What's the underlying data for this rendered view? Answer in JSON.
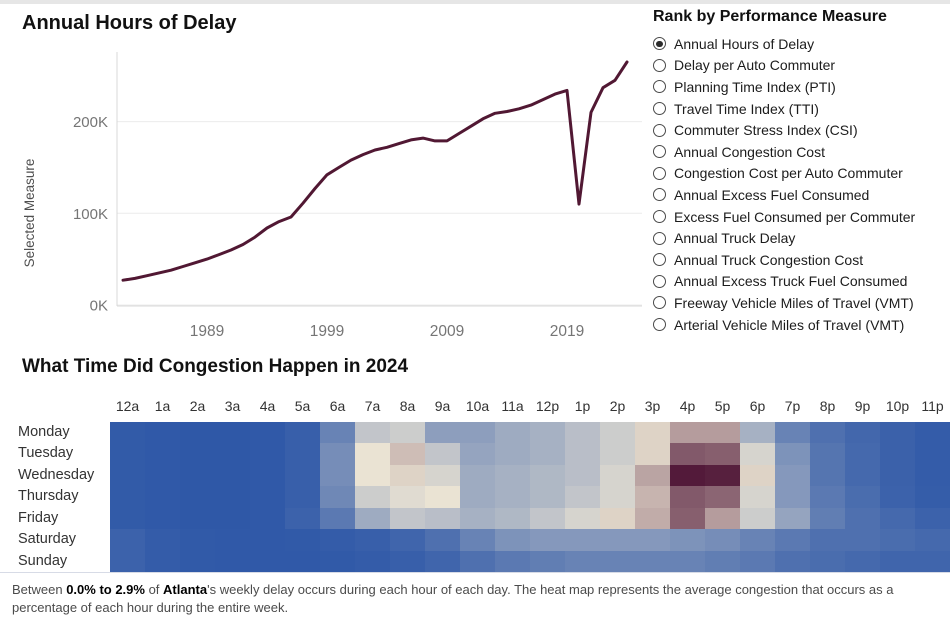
{
  "line_section": {
    "title": "Annual Hours of Delay",
    "y_axis_label": "Selected Measure"
  },
  "radio_panel": {
    "title": "Rank by Performance Measure",
    "selected_index": 0,
    "options": [
      "Annual Hours of Delay",
      "Delay per Auto Commuter",
      "Planning Time Index (PTI)",
      "Travel Time Index (TTI)",
      "Commuter Stress Index (CSI)",
      "Annual Congestion Cost",
      "Congestion Cost per Auto Commuter",
      "Annual Excess Fuel Consumed",
      "Excess Fuel Consumed per Commuter",
      "Annual Truck Delay",
      "Annual Truck Congestion Cost",
      "Annual Excess Truck Fuel Consumed",
      "Freeway Vehicle Miles of Travel (VMT)",
      "Arterial Vehicle Miles of Travel (VMT)"
    ]
  },
  "heat_section": {
    "title": "What Time Did Congestion Happen in 2024"
  },
  "footer": {
    "segments": [
      {
        "text": "Between ",
        "bold": false
      },
      {
        "text": "0.0% to 2.9%",
        "bold": true
      },
      {
        "text": " of ",
        "bold": false
      },
      {
        "text": "Atlanta",
        "bold": true
      },
      {
        "text": "'s weekly delay occurs during each hour of each day. The heat map represents the average congestion that occurs as a percentage of each hour during the entire week.",
        "bold": false
      }
    ]
  },
  "colors": {
    "line": "#511833",
    "gridline": "#ececec",
    "axis_line": "#d8d8d8",
    "tick_text": "#757575",
    "heat_low": "#2d57a7",
    "heat_mid": "#eae3d3",
    "heat_high": "#4f1536"
  },
  "chart_data": [
    {
      "type": "line",
      "title": "Annual Hours of Delay",
      "xlabel": "",
      "ylabel": "Selected Measure",
      "x": [
        1982,
        1983,
        1984,
        1985,
        1986,
        1987,
        1988,
        1989,
        1990,
        1991,
        1992,
        1993,
        1994,
        1995,
        1996,
        1997,
        1998,
        1999,
        2000,
        2001,
        2002,
        2003,
        2004,
        2005,
        2006,
        2007,
        2008,
        2009,
        2010,
        2011,
        2012,
        2013,
        2014,
        2015,
        2016,
        2017,
        2018,
        2019,
        2020,
        2021,
        2022,
        2023,
        2024
      ],
      "y": [
        27000,
        29000,
        32000,
        35000,
        38000,
        42000,
        46000,
        50000,
        55000,
        60000,
        66000,
        74000,
        84000,
        91000,
        96000,
        111000,
        127000,
        142000,
        150000,
        158000,
        164000,
        169000,
        172000,
        176000,
        180000,
        182000,
        179000,
        179000,
        187000,
        195000,
        203000,
        209000,
        211000,
        214000,
        218000,
        224000,
        230000,
        234000,
        110000,
        210000,
        237000,
        245000,
        265000
      ],
      "ylim": [
        0,
        280000
      ],
      "y_ticks": [
        {
          "v": 0,
          "label": "0K"
        },
        {
          "v": 100000,
          "label": "100K"
        },
        {
          "v": 200000,
          "label": "200K"
        }
      ],
      "x_ticks": [
        {
          "v": 1989,
          "label": "1989"
        },
        {
          "v": 1999,
          "label": "1999"
        },
        {
          "v": 2009,
          "label": "2009"
        },
        {
          "v": 2019,
          "label": "2019"
        }
      ],
      "grid": true,
      "legend": "none"
    },
    {
      "type": "heatmap",
      "title": "What Time Did Congestion Happen in 2024",
      "unit": "percent of weekly delay per hour",
      "value_range": [
        0.0,
        2.9
      ],
      "hours": [
        "12a",
        "1a",
        "2a",
        "3a",
        "4a",
        "5a",
        "6a",
        "7a",
        "8a",
        "9a",
        "10a",
        "11a",
        "12p",
        "1p",
        "2p",
        "3p",
        "4p",
        "5p",
        "6p",
        "7p",
        "8p",
        "9p",
        "10p",
        "11p"
      ],
      "days": [
        "Monday",
        "Tuesday",
        "Wednesday",
        "Thursday",
        "Friday",
        "Saturday",
        "Sunday"
      ],
      "values": [
        [
          0.15,
          0.1,
          0.08,
          0.08,
          0.1,
          0.25,
          0.7,
          1.25,
          1.3,
          0.95,
          0.95,
          1.05,
          1.1,
          1.2,
          1.3,
          1.5,
          1.8,
          1.8,
          1.1,
          0.7,
          0.5,
          0.38,
          0.28,
          0.18
        ],
        [
          0.15,
          0.1,
          0.08,
          0.08,
          0.1,
          0.25,
          0.8,
          1.45,
          1.6,
          1.25,
          1.0,
          1.05,
          1.1,
          1.2,
          1.3,
          1.5,
          2.3,
          2.25,
          1.35,
          0.85,
          0.55,
          0.4,
          0.28,
          0.18
        ],
        [
          0.15,
          0.1,
          0.08,
          0.08,
          0.1,
          0.25,
          0.8,
          1.45,
          1.5,
          1.35,
          1.05,
          1.1,
          1.15,
          1.2,
          1.35,
          1.75,
          2.85,
          2.8,
          1.5,
          0.9,
          0.55,
          0.4,
          0.28,
          0.18
        ],
        [
          0.15,
          0.1,
          0.08,
          0.08,
          0.1,
          0.25,
          0.75,
          1.3,
          1.4,
          1.45,
          1.05,
          1.1,
          1.15,
          1.25,
          1.35,
          1.65,
          2.3,
          2.2,
          1.35,
          0.9,
          0.6,
          0.45,
          0.3,
          0.2
        ],
        [
          0.15,
          0.1,
          0.08,
          0.08,
          0.1,
          0.3,
          0.6,
          1.05,
          1.25,
          1.2,
          1.1,
          1.15,
          1.25,
          1.35,
          1.5,
          1.7,
          2.25,
          1.8,
          1.3,
          1.0,
          0.65,
          0.5,
          0.4,
          0.3
        ],
        [
          0.3,
          0.18,
          0.12,
          0.1,
          0.1,
          0.12,
          0.18,
          0.25,
          0.35,
          0.5,
          0.7,
          0.85,
          0.9,
          0.9,
          0.9,
          0.9,
          0.85,
          0.8,
          0.7,
          0.6,
          0.5,
          0.5,
          0.45,
          0.4
        ],
        [
          0.3,
          0.18,
          0.12,
          0.1,
          0.1,
          0.1,
          0.12,
          0.18,
          0.25,
          0.35,
          0.5,
          0.6,
          0.65,
          0.7,
          0.7,
          0.7,
          0.7,
          0.65,
          0.6,
          0.5,
          0.45,
          0.4,
          0.35,
          0.35
        ]
      ]
    }
  ]
}
